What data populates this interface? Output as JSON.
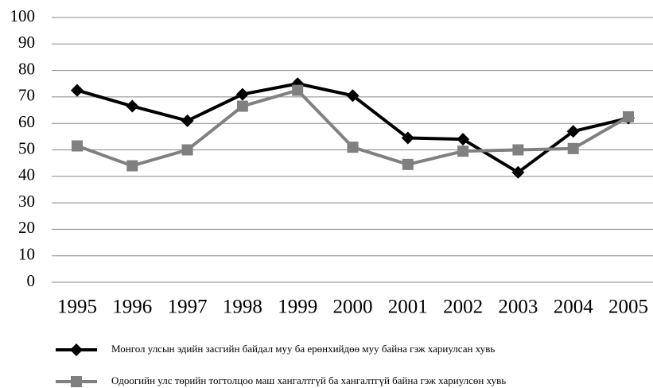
{
  "chart_data": {
    "type": "line",
    "categories": [
      "1995",
      "1996",
      "1997",
      "1998",
      "1999",
      "2000",
      "2001",
      "2002",
      "2003",
      "2004",
      "2005"
    ],
    "series": [
      {
        "name": "Монгол улсын эдийн засгийн байдал муу ба ерөнхийдөө муу байна гэж хариулсан хувь",
        "color": "#000000",
        "marker": "diamond",
        "values": [
          72.5,
          66.5,
          61,
          71,
          75,
          70.5,
          54.5,
          54,
          41.5,
          57,
          62
        ]
      },
      {
        "name": "Одоогийн улс төрийн тогтолцоо маш хангалтгүй ба хангалтгүй байна гэж хариулсөн хувь",
        "color": "#808080",
        "marker": "square",
        "values": [
          51.5,
          44,
          50,
          66.5,
          72.5,
          51,
          44.5,
          49.5,
          50,
          50.5,
          62.5
        ]
      }
    ],
    "ylim": [
      0,
      100
    ],
    "yticks": [
      0,
      10,
      20,
      30,
      40,
      50,
      60,
      70,
      80,
      90,
      100
    ],
    "grid": true,
    "legend": "bottom"
  }
}
